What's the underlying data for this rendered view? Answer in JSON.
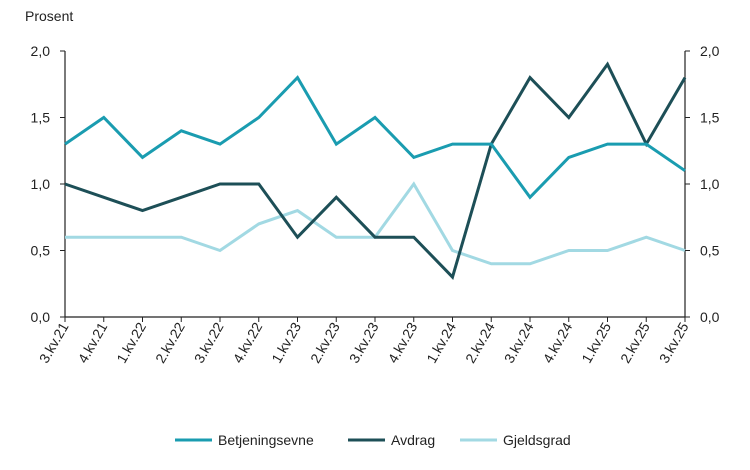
{
  "chart_data": {
    "type": "line",
    "ylabel": "Prosent",
    "ylim": [
      0,
      2
    ],
    "yticks": [
      "0,0",
      "0,5",
      "1,0",
      "1,5",
      "2,0"
    ],
    "categories": [
      "3.kv.21",
      "4.kv.21",
      "1.kv.22",
      "2.kv.22",
      "3.kv.22",
      "4.kv.22",
      "1.kv.23",
      "2.kv.23",
      "3.kv.23",
      "4.kv.23",
      "1.kv.24",
      "2.kv.24",
      "3.kv.24",
      "4.kv.24",
      "1.kv.25",
      "2.kv.25",
      "3.kv.25"
    ],
    "series": [
      {
        "name": "Betjeningsevne",
        "color": "#1a9cb0",
        "values": [
          1.3,
          1.5,
          1.2,
          1.4,
          1.3,
          1.5,
          1.8,
          1.3,
          1.5,
          1.2,
          1.3,
          1.3,
          0.9,
          1.2,
          1.3,
          1.3,
          1.1
        ]
      },
      {
        "name": "Avdrag",
        "color": "#1d4f57",
        "values": [
          1.0,
          0.9,
          0.8,
          0.9,
          1.0,
          1.0,
          0.6,
          0.9,
          0.6,
          0.6,
          0.3,
          1.3,
          1.8,
          1.5,
          1.9,
          1.3,
          1.8
        ]
      },
      {
        "name": "Gjeldsgrad",
        "color": "#a2d9e3",
        "values": [
          0.6,
          0.6,
          0.6,
          0.6,
          0.5,
          0.7,
          0.8,
          0.6,
          0.6,
          1.0,
          0.5,
          0.4,
          0.4,
          0.5,
          0.5,
          0.6,
          0.5
        ]
      }
    ],
    "grid": false,
    "legend": "bottom-center"
  }
}
